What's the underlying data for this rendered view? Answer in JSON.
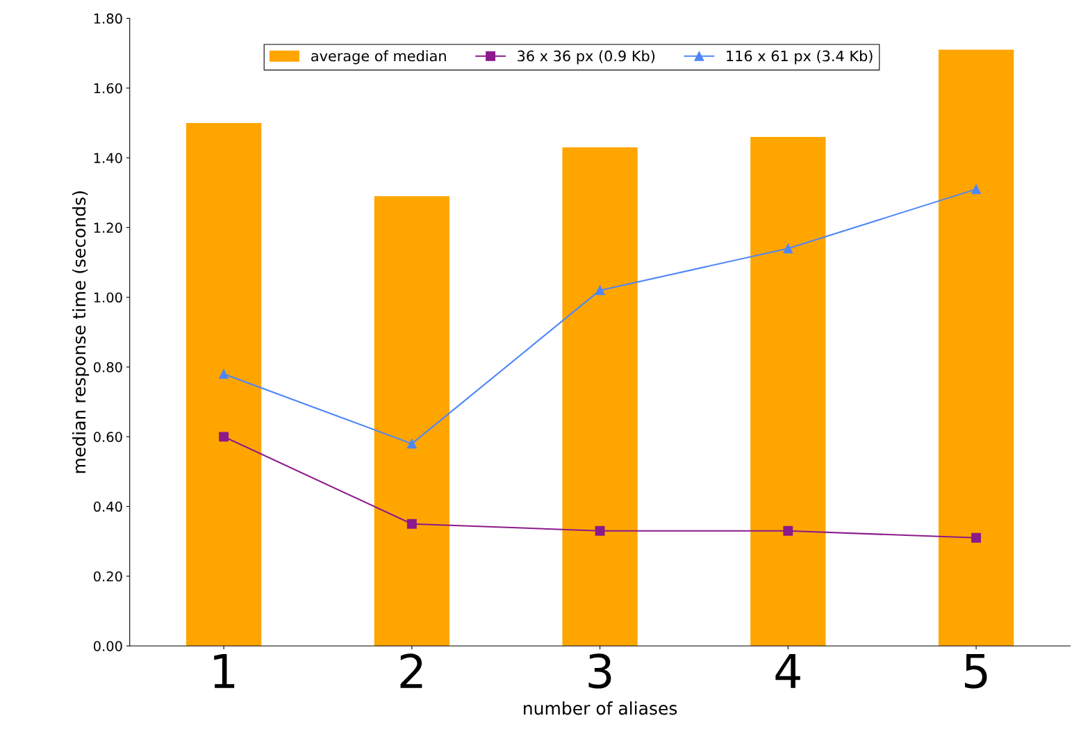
{
  "chart_data": {
    "type": "bar",
    "xlabel": "number of aliases",
    "ylabel": "median response time (seconds)",
    "categories": [
      "1",
      "2",
      "3",
      "4",
      "5"
    ],
    "series": [
      {
        "name": "average of median",
        "color": "#ffa500",
        "values": [
          1.5,
          1.29,
          1.43,
          1.46,
          1.71
        ]
      },
      {
        "name": "36 x 36 px (0.9 Kb)",
        "type": "line",
        "color": "#8b1a8b",
        "marker": "square",
        "values": [
          0.6,
          0.35,
          0.33,
          0.33,
          0.31
        ]
      },
      {
        "name": "116 x 61 px (3.4 Kb)",
        "type": "line",
        "color": "#4f86f7",
        "marker": "triangle",
        "values": [
          0.78,
          0.58,
          1.02,
          1.14,
          1.31
        ]
      }
    ],
    "ylim": [
      0,
      1.8
    ],
    "yticks": [
      {
        "value": 0,
        "label": "0.00"
      },
      {
        "value": 0.2,
        "label": "0.20"
      },
      {
        "value": 0.4,
        "label": "0.40"
      },
      {
        "value": 0.6,
        "label": "0.60"
      },
      {
        "value": 0.8,
        "label": "0.80"
      },
      {
        "value": 1.0,
        "label": "1.00"
      },
      {
        "value": 1.2,
        "label": "1.20"
      },
      {
        "value": 1.4,
        "label": "1.40"
      },
      {
        "value": 1.6,
        "label": "1.60"
      },
      {
        "value": 1.8,
        "label": "1.80"
      }
    ],
    "grid": false,
    "legend": "top"
  }
}
